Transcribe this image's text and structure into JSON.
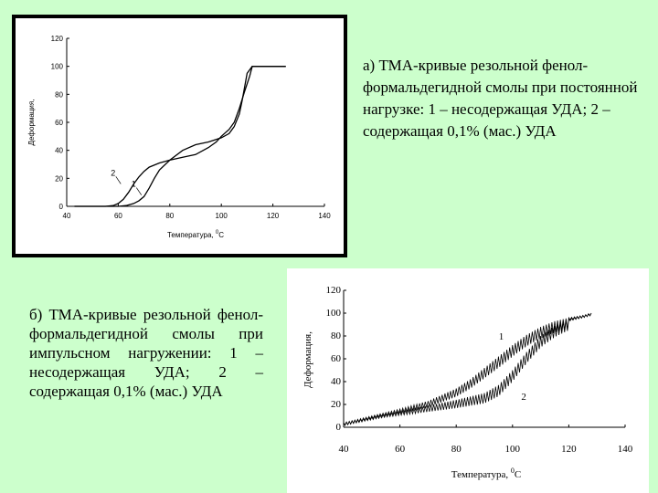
{
  "captions": {
    "a": "а) ТМА-кривые резольной фенол-формальдегидной смолы при постоянной нагрузке: 1 – несодержащая УДА; 2 – содержащая 0,1% (мас.) УДА",
    "b": "б) ТМА-кривые резольной фенол-формальдегидной смолы при импульсном нагружении: 1 – несодержащая УДА; 2 – содержащая 0,1% (мас.) УДА"
  },
  "chart_data": [
    {
      "type": "line",
      "ylabel": "Деформация,",
      "xlabel_main": "Температура, ",
      "xlabel_sup": "0",
      "xlabel_unit": "С",
      "xlim": [
        40,
        140
      ],
      "ylim": [
        0,
        120
      ],
      "x_ticks": [
        "40",
        "60",
        "80",
        "100",
        "120",
        "140"
      ],
      "y_ticks": [
        "0",
        "20",
        "40",
        "60",
        "80",
        "100",
        "120"
      ],
      "grid": false,
      "series": [
        {
          "name": "1",
          "x": [
            43,
            55,
            60,
            63,
            66,
            68,
            70,
            72,
            74,
            76,
            80,
            85,
            90,
            95,
            100,
            103,
            105,
            107,
            108,
            109,
            110,
            112,
            125
          ],
          "y": [
            0,
            0,
            0,
            0.5,
            2,
            4,
            7,
            13,
            20,
            26,
            33,
            40,
            44,
            46,
            49,
            52,
            57,
            66,
            75,
            85,
            95,
            100,
            100
          ]
        },
        {
          "name": "2",
          "x": [
            43,
            55,
            58,
            60,
            62,
            64,
            66,
            68,
            70,
            72,
            76,
            80,
            85,
            90,
            95,
            98,
            100,
            103,
            105,
            107,
            109,
            111,
            112,
            125
          ],
          "y": [
            0,
            0,
            0.5,
            2,
            5,
            10,
            16,
            21,
            25,
            28,
            31,
            33,
            35,
            37,
            42,
            46,
            50,
            55,
            60,
            70,
            82,
            93,
            100,
            100
          ]
        }
      ]
    },
    {
      "type": "line",
      "ylabel": "Деформация,",
      "xlabel_main": "Температура, ",
      "xlabel_sup": "0",
      "xlabel_unit": "С",
      "xlim": [
        40,
        140
      ],
      "ylim": [
        0,
        120
      ],
      "x_ticks": [
        "40",
        "60",
        "80",
        "100",
        "120",
        "140"
      ],
      "y_ticks": [
        "0",
        "20",
        "40",
        "60",
        "80",
        "100",
        "120"
      ],
      "grid": false,
      "pulse_amplitude": 10,
      "series": [
        {
          "name": "1",
          "x": [
            40,
            50,
            60,
            70,
            80,
            85,
            90,
            95,
            100,
            105,
            110,
            115,
            120,
            125,
            128
          ],
          "y": [
            4,
            10,
            16,
            23,
            34,
            42,
            52,
            62,
            72,
            81,
            88,
            93,
            96,
            98,
            100
          ]
        },
        {
          "name": "2",
          "x": [
            40,
            50,
            60,
            70,
            80,
            85,
            90,
            95,
            100,
            105,
            110,
            115,
            120,
            125,
            128
          ],
          "y": [
            4,
            9,
            14,
            19,
            24,
            27,
            30,
            37,
            50,
            66,
            80,
            89,
            95,
            98,
            100
          ]
        }
      ]
    }
  ]
}
